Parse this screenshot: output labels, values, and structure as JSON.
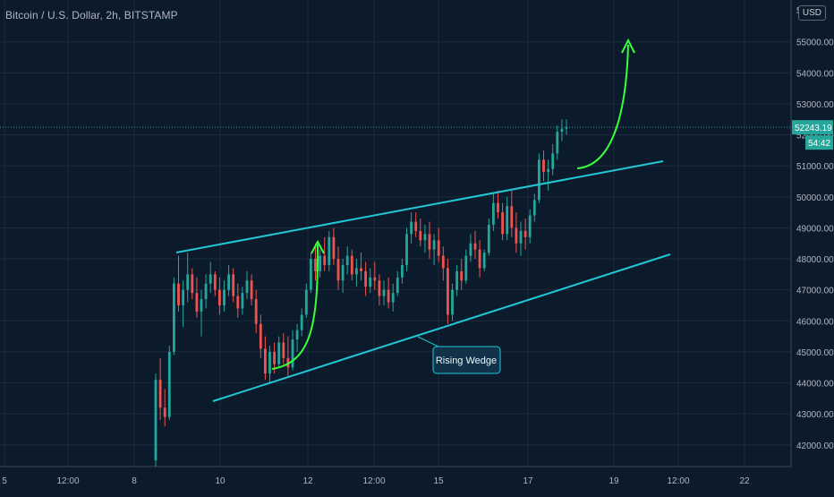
{
  "header": {
    "symbol_title": "Bitcoin / U.S. Dollar, 2h, BITSTAMP",
    "currency_button": "USD"
  },
  "price_scale": {
    "last_price_label": "52243.19",
    "countdown_label": "54:42",
    "top_partial_label": "5"
  },
  "colors": {
    "background": "#0c1b2b",
    "grid": "#1b2b3c",
    "up": "#26a69a",
    "down": "#ef5350",
    "trendline": "#22c7d6",
    "arrow": "#39ff3c",
    "axis_text": "#b2b5be",
    "price_tag": "#26a69a"
  },
  "annotation": {
    "label": "Rising Wedge"
  },
  "chart_data": {
    "type": "candlestick",
    "symbol": "Bitcoin / U.S. Dollar",
    "interval": "2h",
    "exchange": "BITSTAMP",
    "currency": "USD",
    "y_ticks": [
      42000,
      43000,
      44000,
      45000,
      46000,
      47000,
      48000,
      49000,
      50000,
      51000,
      52000,
      53000,
      54000,
      55000
    ],
    "y_tick_labels": [
      "42000.00",
      "43000.00",
      "44000.00",
      "45000.00",
      "46000.00",
      "47000.00",
      "48000.00",
      "49000.00",
      "50000.00",
      "51000.00",
      "52000.00",
      "53000.00",
      "54000.00",
      "55000.00"
    ],
    "ylim": [
      41300,
      56350
    ],
    "x_tick_labels": [
      "5",
      "12:00",
      "8",
      "10",
      "12",
      "12:00",
      "15",
      "17",
      "19",
      "12:00",
      "22"
    ],
    "grid": true,
    "last_price": 52243.19,
    "candles_ohlc": [
      [
        41500,
        44300,
        41300,
        44100
      ],
      [
        44100,
        44800,
        42800,
        43200
      ],
      [
        43200,
        43800,
        42600,
        42900
      ],
      [
        42900,
        45200,
        42800,
        45000
      ],
      [
        45000,
        47400,
        44900,
        47200
      ],
      [
        47200,
        48100,
        46300,
        46500
      ],
      [
        46500,
        47300,
        45800,
        47000
      ],
      [
        47000,
        48200,
        46600,
        47500
      ],
      [
        47500,
        47700,
        46700,
        46900
      ],
      [
        46900,
        47400,
        46100,
        46300
      ],
      [
        46300,
        47000,
        45500,
        46700
      ],
      [
        46700,
        47500,
        46400,
        47200
      ],
      [
        47200,
        47900,
        46900,
        47500
      ],
      [
        47500,
        47600,
        46800,
        47000
      ],
      [
        47000,
        47400,
        46200,
        46500
      ],
      [
        46500,
        47300,
        46300,
        47000
      ],
      [
        47000,
        47800,
        46800,
        47500
      ],
      [
        47500,
        47700,
        46600,
        46800
      ],
      [
        46800,
        47200,
        46100,
        46400
      ],
      [
        46400,
        47100,
        46200,
        46900
      ],
      [
        46900,
        47600,
        46700,
        47300
      ],
      [
        47300,
        47500,
        46500,
        46700
      ],
      [
        46700,
        47000,
        45600,
        45900
      ],
      [
        45900,
        46200,
        44800,
        45100
      ],
      [
        45100,
        45500,
        44100,
        44300
      ],
      [
        44300,
        45200,
        44000,
        45000
      ],
      [
        45000,
        45300,
        44300,
        44600
      ],
      [
        44600,
        45500,
        44500,
        45300
      ],
      [
        45300,
        45600,
        44600,
        44800
      ],
      [
        44800,
        45500,
        44200,
        44500
      ],
      [
        44500,
        45700,
        44400,
        45400
      ],
      [
        45400,
        45900,
        45000,
        45700
      ],
      [
        45700,
        46400,
        45500,
        46200
      ],
      [
        46200,
        47200,
        46100,
        47000
      ],
      [
        47000,
        48200,
        46900,
        48000
      ],
      [
        48000,
        48500,
        47300,
        47600
      ],
      [
        47600,
        48300,
        47400,
        48100
      ],
      [
        48100,
        48700,
        47600,
        47800
      ],
      [
        47800,
        48900,
        47600,
        48700
      ],
      [
        48700,
        49000,
        47800,
        48000
      ],
      [
        48000,
        48400,
        47000,
        47300
      ],
      [
        47300,
        48000,
        46900,
        47800
      ],
      [
        47800,
        48400,
        47500,
        48100
      ],
      [
        48100,
        48300,
        47300,
        47500
      ],
      [
        47500,
        48000,
        47100,
        47700
      ],
      [
        47700,
        48200,
        47300,
        47600
      ],
      [
        47600,
        47900,
        46800,
        47100
      ],
      [
        47100,
        47700,
        46900,
        47400
      ],
      [
        47400,
        47900,
        47000,
        47300
      ],
      [
        47300,
        47500,
        46500,
        46800
      ],
      [
        46800,
        47300,
        46500,
        47000
      ],
      [
        47000,
        47400,
        46400,
        46600
      ],
      [
        46600,
        47200,
        46300,
        46900
      ],
      [
        46900,
        47600,
        46800,
        47400
      ],
      [
        47400,
        48000,
        47200,
        47800
      ],
      [
        47800,
        49000,
        47600,
        48800
      ],
      [
        48800,
        49500,
        48500,
        49200
      ],
      [
        49200,
        49500,
        48700,
        48900
      ],
      [
        48900,
        49300,
        48400,
        48600
      ],
      [
        48600,
        49100,
        48200,
        48800
      ],
      [
        48800,
        49200,
        48000,
        48300
      ],
      [
        48300,
        48800,
        47800,
        48600
      ],
      [
        48600,
        49000,
        47900,
        48100
      ],
      [
        48100,
        48400,
        47300,
        47700
      ],
      [
        47700,
        48000,
        45900,
        46200
      ],
      [
        46200,
        47200,
        46000,
        47000
      ],
      [
        47000,
        47800,
        46800,
        47600
      ],
      [
        47600,
        48000,
        47000,
        47300
      ],
      [
        47300,
        48300,
        47200,
        48100
      ],
      [
        48100,
        48800,
        47900,
        48500
      ],
      [
        48500,
        48900,
        48000,
        48300
      ],
      [
        48300,
        48600,
        47400,
        47700
      ],
      [
        47700,
        48300,
        47600,
        48200
      ],
      [
        48200,
        49300,
        48100,
        49100
      ],
      [
        49100,
        50100,
        48900,
        49800
      ],
      [
        49800,
        50200,
        49300,
        49500
      ],
      [
        49500,
        49800,
        48600,
        48800
      ],
      [
        48800,
        50000,
        48600,
        49700
      ],
      [
        49700,
        50200,
        48700,
        49000
      ],
      [
        49000,
        49500,
        48200,
        48500
      ],
      [
        48500,
        49200,
        48100,
        48900
      ],
      [
        48900,
        49300,
        48300,
        48700
      ],
      [
        48700,
        49600,
        48500,
        49400
      ],
      [
        49400,
        50100,
        49200,
        49900
      ],
      [
        49900,
        51400,
        49800,
        51200
      ],
      [
        51200,
        51500,
        50500,
        50800
      ],
      [
        50800,
        51200,
        50200,
        50900
      ],
      [
        50900,
        51700,
        50700,
        51400
      ],
      [
        51400,
        52300,
        51200,
        52100
      ],
      [
        52100,
        52500,
        51800,
        52200
      ],
      [
        52200,
        52500,
        52000,
        52243
      ]
    ]
  }
}
